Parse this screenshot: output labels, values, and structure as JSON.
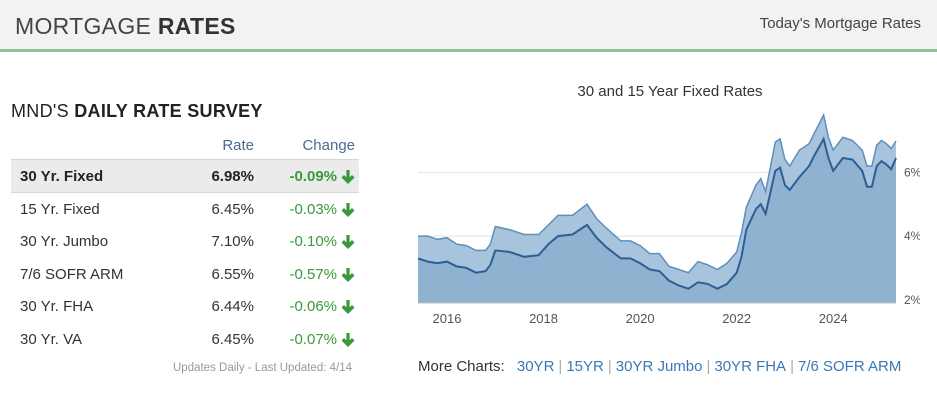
{
  "header": {
    "title_light": "MORTGAGE ",
    "title_bold": "RATES",
    "link": "Today's Mortgage Rates"
  },
  "survey": {
    "title_light": "MND'S ",
    "title_bold": "DAILY RATE SURVEY",
    "col_rate": "Rate",
    "col_change": "Change",
    "rows": [
      {
        "name": "30 Yr. Fixed",
        "rate": "6.98%",
        "change": "-0.09%",
        "direction": "down",
        "highlighted": true
      },
      {
        "name": "15 Yr. Fixed",
        "rate": "6.45%",
        "change": "-0.03%",
        "direction": "down"
      },
      {
        "name": "30 Yr. Jumbo",
        "rate": "7.10%",
        "change": "-0.10%",
        "direction": "down"
      },
      {
        "name": "7/6 SOFR ARM",
        "rate": "6.55%",
        "change": "-0.57%",
        "direction": "down"
      },
      {
        "name": "30 Yr. FHA",
        "rate": "6.44%",
        "change": "-0.06%",
        "direction": "down"
      },
      {
        "name": "30 Yr. VA",
        "rate": "6.45%",
        "change": "-0.07%",
        "direction": "down"
      }
    ],
    "updated": "Updates Daily - Last Updated: 4/14"
  },
  "more_charts": {
    "label": "More Charts:",
    "links": [
      "30YR",
      "15YR",
      "30YR Jumbo",
      "30YR FHA",
      "7/6 SOFR ARM"
    ]
  },
  "colors": {
    "accent_green": "#8cc49a",
    "down_green": "#3a9a3a",
    "link_blue": "#3a78b5",
    "area_light": "#a8c4dc",
    "area_dark": "#8fb2d0",
    "line_light": "#5b8fbe",
    "line_dark": "#2d5e94"
  },
  "chart_data": {
    "type": "area",
    "title": "30 and 15 Year Fixed Rates",
    "xlabel": "",
    "ylabel": "",
    "xlim": [
      2015.4,
      2025.3
    ],
    "ylim": [
      1.9,
      7.8
    ],
    "x_ticks": [
      "2016",
      "2018",
      "2020",
      "2022",
      "2024"
    ],
    "y_ticks": [
      "2%",
      "4%",
      "6%"
    ],
    "grid": true,
    "series": [
      {
        "name": "30 Year Fixed",
        "points": [
          [
            2015.4,
            4.0
          ],
          [
            2015.6,
            4.0
          ],
          [
            2015.8,
            3.9
          ],
          [
            2016.0,
            3.95
          ],
          [
            2016.2,
            3.75
          ],
          [
            2016.4,
            3.7
          ],
          [
            2016.6,
            3.55
          ],
          [
            2016.8,
            3.55
          ],
          [
            2016.9,
            3.75
          ],
          [
            2017.0,
            4.3
          ],
          [
            2017.3,
            4.2
          ],
          [
            2017.6,
            4.05
          ],
          [
            2017.9,
            4.05
          ],
          [
            2018.1,
            4.35
          ],
          [
            2018.3,
            4.65
          ],
          [
            2018.6,
            4.65
          ],
          [
            2018.9,
            5.0
          ],
          [
            2019.1,
            4.55
          ],
          [
            2019.3,
            4.25
          ],
          [
            2019.6,
            3.85
          ],
          [
            2019.8,
            3.85
          ],
          [
            2020.0,
            3.7
          ],
          [
            2020.2,
            3.45
          ],
          [
            2020.4,
            3.45
          ],
          [
            2020.6,
            3.05
          ],
          [
            2020.8,
            2.95
          ],
          [
            2021.0,
            2.85
          ],
          [
            2021.2,
            3.2
          ],
          [
            2021.4,
            3.1
          ],
          [
            2021.6,
            2.95
          ],
          [
            2021.8,
            3.15
          ],
          [
            2022.0,
            3.5
          ],
          [
            2022.1,
            4.1
          ],
          [
            2022.2,
            4.9
          ],
          [
            2022.4,
            5.6
          ],
          [
            2022.5,
            5.8
          ],
          [
            2022.6,
            5.4
          ],
          [
            2022.8,
            6.95
          ],
          [
            2022.9,
            7.05
          ],
          [
            2023.0,
            6.4
          ],
          [
            2023.1,
            6.2
          ],
          [
            2023.3,
            6.7
          ],
          [
            2023.5,
            6.9
          ],
          [
            2023.6,
            7.2
          ],
          [
            2023.8,
            7.8
          ],
          [
            2023.9,
            7.1
          ],
          [
            2024.0,
            6.7
          ],
          [
            2024.2,
            7.1
          ],
          [
            2024.4,
            7.0
          ],
          [
            2024.6,
            6.7
          ],
          [
            2024.7,
            6.2
          ],
          [
            2024.8,
            6.2
          ],
          [
            2024.9,
            6.85
          ],
          [
            2025.0,
            7.0
          ],
          [
            2025.1,
            6.9
          ],
          [
            2025.2,
            6.75
          ],
          [
            2025.3,
            6.98
          ]
        ]
      },
      {
        "name": "15 Year Fixed",
        "points": [
          [
            2015.4,
            3.3
          ],
          [
            2015.6,
            3.2
          ],
          [
            2015.8,
            3.15
          ],
          [
            2016.0,
            3.2
          ],
          [
            2016.2,
            3.05
          ],
          [
            2016.4,
            3.0
          ],
          [
            2016.6,
            2.85
          ],
          [
            2016.8,
            2.9
          ],
          [
            2016.9,
            3.1
          ],
          [
            2017.0,
            3.55
          ],
          [
            2017.3,
            3.5
          ],
          [
            2017.6,
            3.35
          ],
          [
            2017.9,
            3.4
          ],
          [
            2018.1,
            3.75
          ],
          [
            2018.3,
            4.0
          ],
          [
            2018.6,
            4.05
          ],
          [
            2018.9,
            4.35
          ],
          [
            2019.1,
            3.95
          ],
          [
            2019.3,
            3.65
          ],
          [
            2019.6,
            3.3
          ],
          [
            2019.8,
            3.3
          ],
          [
            2020.0,
            3.15
          ],
          [
            2020.2,
            2.95
          ],
          [
            2020.4,
            2.9
          ],
          [
            2020.6,
            2.6
          ],
          [
            2020.8,
            2.45
          ],
          [
            2021.0,
            2.35
          ],
          [
            2021.2,
            2.55
          ],
          [
            2021.4,
            2.5
          ],
          [
            2021.6,
            2.35
          ],
          [
            2021.8,
            2.5
          ],
          [
            2022.0,
            2.85
          ],
          [
            2022.1,
            3.35
          ],
          [
            2022.2,
            4.2
          ],
          [
            2022.4,
            4.85
          ],
          [
            2022.5,
            5.0
          ],
          [
            2022.6,
            4.7
          ],
          [
            2022.8,
            6.05
          ],
          [
            2022.9,
            6.15
          ],
          [
            2023.0,
            5.6
          ],
          [
            2023.1,
            5.45
          ],
          [
            2023.3,
            5.85
          ],
          [
            2023.5,
            6.2
          ],
          [
            2023.6,
            6.5
          ],
          [
            2023.8,
            7.05
          ],
          [
            2023.9,
            6.45
          ],
          [
            2024.0,
            6.05
          ],
          [
            2024.2,
            6.45
          ],
          [
            2024.4,
            6.4
          ],
          [
            2024.6,
            6.05
          ],
          [
            2024.7,
            5.55
          ],
          [
            2024.8,
            5.55
          ],
          [
            2024.9,
            6.2
          ],
          [
            2025.0,
            6.35
          ],
          [
            2025.1,
            6.25
          ],
          [
            2025.2,
            6.1
          ],
          [
            2025.3,
            6.45
          ]
        ]
      }
    ]
  }
}
